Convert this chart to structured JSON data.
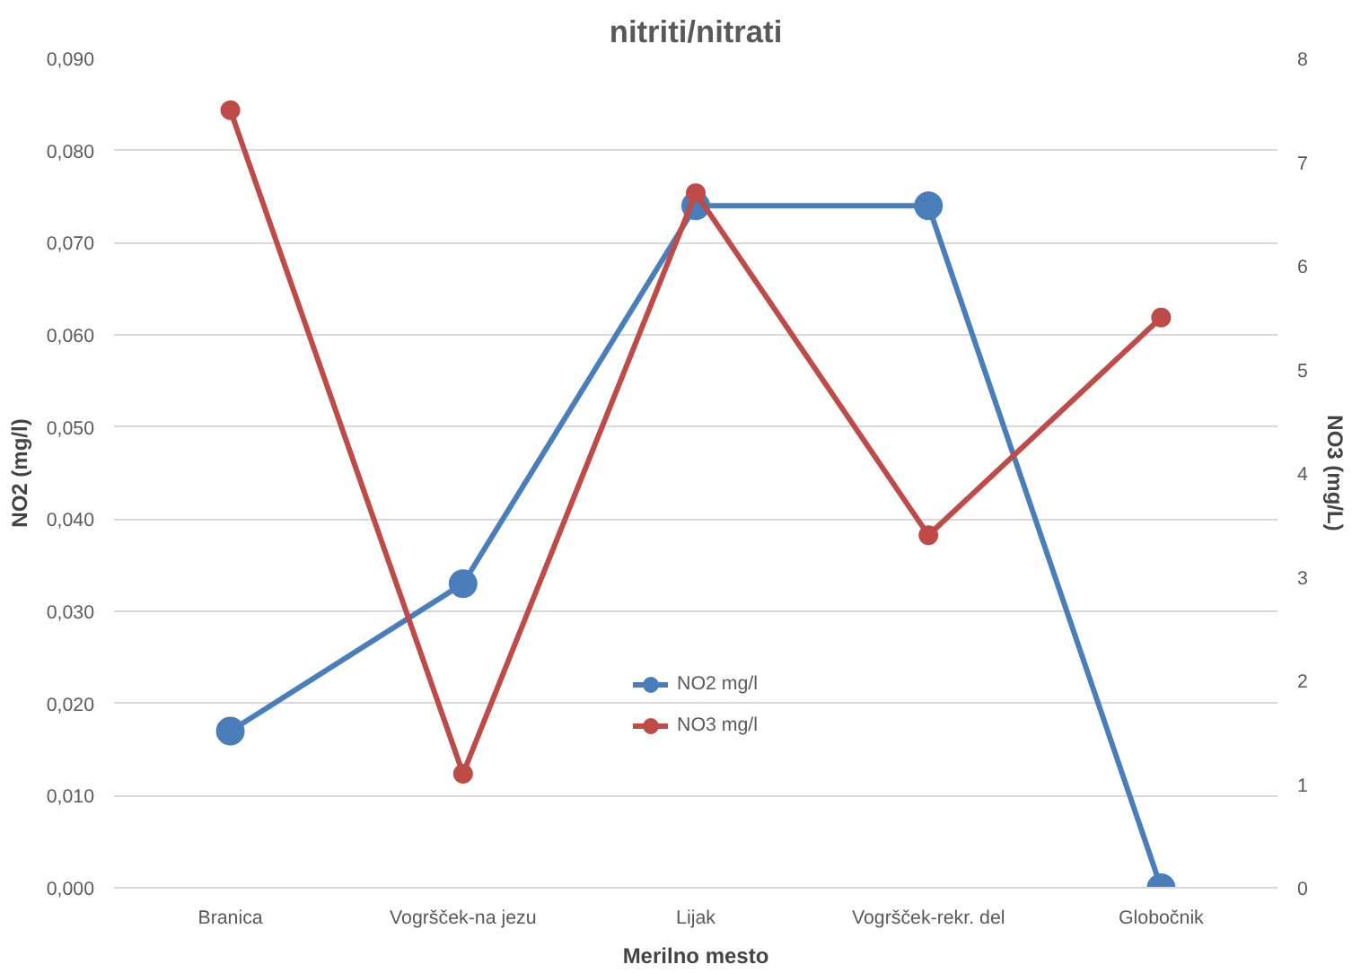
{
  "chart_data": {
    "type": "line",
    "title": "nitriti/nitrati",
    "xlabel": "Merilno mesto",
    "ylabel": "NO2 (mg/l)",
    "y2label": "NO3 (mg/L)",
    "categories": [
      "Branica",
      "Vogršček-na jezu",
      "Lijak",
      "Vogršček-rekr. del",
      "Globočnik"
    ],
    "series": [
      {
        "name": "NO2 mg/l",
        "color": "#4a7ebb",
        "values": [
          0.017,
          0.033,
          0.074,
          0.074,
          0.0
        ]
      },
      {
        "name": "NO3 mg/l",
        "color": "#be4b48",
        "values": [
          7.5,
          1.1,
          6.7,
          3.4,
          5.5
        ],
        "axis": "y2"
      }
    ],
    "ylim": [
      0,
      0.09
    ],
    "yticks": [
      {
        "value": 0,
        "label": "0,000"
      },
      {
        "value": 0.01,
        "label": "0,010"
      },
      {
        "value": 0.02,
        "label": "0,020"
      },
      {
        "value": 0.03,
        "label": "0,030"
      },
      {
        "value": 0.04,
        "label": "0,040"
      },
      {
        "value": 0.05,
        "label": "0,050"
      },
      {
        "value": 0.06,
        "label": "0,060"
      },
      {
        "value": 0.07,
        "label": "0,070"
      },
      {
        "value": 0.08,
        "label": "0,080"
      },
      {
        "value": 0.09,
        "label": "0,090"
      }
    ],
    "y2lim": [
      0,
      8
    ],
    "y2ticks": [
      0,
      1,
      2,
      3,
      4,
      5,
      6,
      7,
      8
    ],
    "grid": "y",
    "legend": "bottom",
    "marker": "circle",
    "line_style": "solid"
  }
}
